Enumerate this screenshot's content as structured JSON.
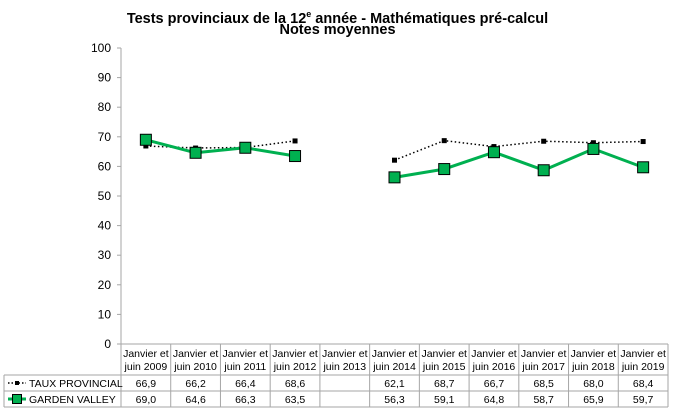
{
  "chart_data": {
    "type": "line",
    "title": "Tests provinciaux de la 12e année - Mathématiques pré-calcul",
    "subtitle": "Notes moyennes",
    "ylim": [
      0,
      100
    ],
    "yticks": [
      "0",
      "10",
      "20",
      "30",
      "40",
      "50",
      "60",
      "70",
      "80",
      "90",
      "100"
    ],
    "grid": false,
    "legend": "data-table-left",
    "categories": [
      [
        "Janvier et",
        "juin 2009"
      ],
      [
        "Janvier et",
        "juin 2010"
      ],
      [
        "Janvier et",
        "juin 2011"
      ],
      [
        "Janvier et",
        "juin 2012"
      ],
      [
        "Janvier et",
        "juin 2013"
      ],
      [
        "Janvier et",
        "juin 2014"
      ],
      [
        "Janvier et",
        "juin 2015"
      ],
      [
        "Janvier et",
        "juin 2016"
      ],
      [
        "Janvier et",
        "juin 2017"
      ],
      [
        "Janvier et",
        "juin 2018"
      ],
      [
        "Janvier et",
        "juin 2019"
      ]
    ],
    "series": [
      {
        "name": "TAUX PROVINCIAL",
        "color": "#000000",
        "style": "dotted",
        "values": [
          66.9,
          66.2,
          66.4,
          68.6,
          null,
          62.1,
          68.7,
          66.7,
          68.5,
          68.0,
          68.4
        ],
        "labels": [
          "66,9",
          "66,2",
          "66,4",
          "68,6",
          "",
          "62,1",
          "68,7",
          "66,7",
          "68,5",
          "68,0",
          "68,4"
        ]
      },
      {
        "name": "GARDEN VALLEY",
        "color": "#00B050",
        "style": "solid",
        "values": [
          69.0,
          64.6,
          66.3,
          63.5,
          null,
          56.3,
          59.1,
          64.8,
          58.7,
          65.9,
          59.7
        ],
        "labels": [
          "69,0",
          "64,6",
          "66,3",
          "63,5",
          "",
          "56,3",
          "59,1",
          "64,8",
          "58,7",
          "65,9",
          "59,7"
        ]
      }
    ]
  }
}
